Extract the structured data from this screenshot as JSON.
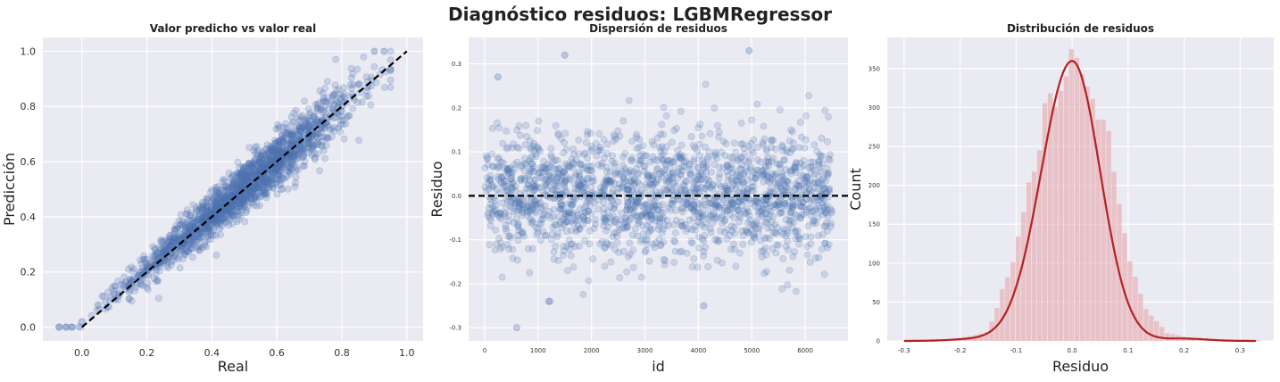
{
  "figure": {
    "title": "Diagnóstico residuos: LGBMRegressor"
  },
  "colors": {
    "points": "#4c72b0",
    "reference_line": "#000000",
    "histogram": "#e8b4b8",
    "kde": "#b22222",
    "panel_background": "#eaeaf2"
  },
  "chart_data": [
    {
      "type": "scatter",
      "title": "Valor predicho vs valor real",
      "xlabel": "Real",
      "ylabel": "Predicción",
      "xlim": [
        -0.12,
        1.05
      ],
      "ylim": [
        -0.05,
        1.05
      ],
      "xticks": [
        "0.0",
        "0.2",
        "0.4",
        "0.6",
        "0.8",
        "1.0"
      ],
      "yticks": [
        "0.0",
        "0.2",
        "0.4",
        "0.6",
        "0.8",
        "1.0"
      ],
      "reference_line": {
        "x": [
          0,
          1
        ],
        "y": [
          0,
          1
        ],
        "style": "dashed"
      },
      "points_sample": [
        [
          -0.07,
          0
        ],
        [
          -0.05,
          0
        ],
        [
          -0.03,
          0
        ],
        [
          0.0,
          0.02
        ],
        [
          0.05,
          0.08
        ],
        [
          0.1,
          0.12
        ],
        [
          0.15,
          0.17
        ],
        [
          0.2,
          0.22
        ],
        [
          0.25,
          0.27
        ],
        [
          0.3,
          0.32
        ],
        [
          0.35,
          0.36
        ],
        [
          0.4,
          0.41
        ],
        [
          0.45,
          0.46
        ],
        [
          0.5,
          0.52
        ],
        [
          0.55,
          0.57
        ],
        [
          0.6,
          0.61
        ],
        [
          0.65,
          0.66
        ],
        [
          0.7,
          0.7
        ],
        [
          0.75,
          0.74
        ],
        [
          0.8,
          0.8
        ],
        [
          0.85,
          0.88
        ],
        [
          0.9,
          1.0
        ],
        [
          0.93,
          1.0
        ]
      ],
      "grid": true
    },
    {
      "type": "scatter",
      "title": "Dispersión de residuos",
      "xlabel": "id",
      "ylabel": "Residuo",
      "xlim": [
        -300,
        6800
      ],
      "ylim": [
        -0.33,
        0.36
      ],
      "xticks": [
        "0",
        "1000",
        "2000",
        "3000",
        "4000",
        "5000",
        "6000"
      ],
      "yticks": [
        "-0.3",
        "-0.2",
        "-0.1",
        "0.0",
        "0.1",
        "0.2",
        "0.3"
      ],
      "reference_line": {
        "y": 0,
        "style": "dashed"
      },
      "n_points": 6500,
      "residual_std": 0.07,
      "outliers_sample": [
        [
          1500,
          0.32
        ],
        [
          4950,
          0.33
        ],
        [
          250,
          0.27
        ],
        [
          600,
          -0.3
        ],
        [
          1200,
          -0.24
        ],
        [
          4100,
          -0.25
        ]
      ],
      "grid": true
    },
    {
      "type": "histogram",
      "title": "Distribución de residuos",
      "xlabel": "Residuo",
      "ylabel": "Count",
      "xlim": [
        -0.33,
        0.36
      ],
      "ylim": [
        0,
        390
      ],
      "xticks": [
        "-0.3",
        "-0.2",
        "-0.1",
        "0.0",
        "0.1",
        "0.2",
        "0.3"
      ],
      "yticks": [
        "0",
        "50",
        "100",
        "150",
        "200",
        "250",
        "300",
        "350"
      ],
      "bin_width": 0.0095,
      "kde_peak": {
        "x": 0.0,
        "y": 360
      },
      "bin_counts_sample": [
        [
          -0.3,
          1
        ],
        [
          -0.2,
          3
        ],
        [
          -0.15,
          12
        ],
        [
          -0.1,
          110
        ],
        [
          -0.08,
          200
        ],
        [
          -0.05,
          280
        ],
        [
          -0.03,
          320
        ],
        [
          0.0,
          372
        ],
        [
          0.03,
          345
        ],
        [
          0.05,
          300
        ],
        [
          0.08,
          210
        ],
        [
          0.1,
          120
        ],
        [
          0.13,
          45
        ],
        [
          0.17,
          10
        ],
        [
          0.22,
          3
        ],
        [
          0.33,
          1
        ]
      ],
      "grid": true
    }
  ]
}
